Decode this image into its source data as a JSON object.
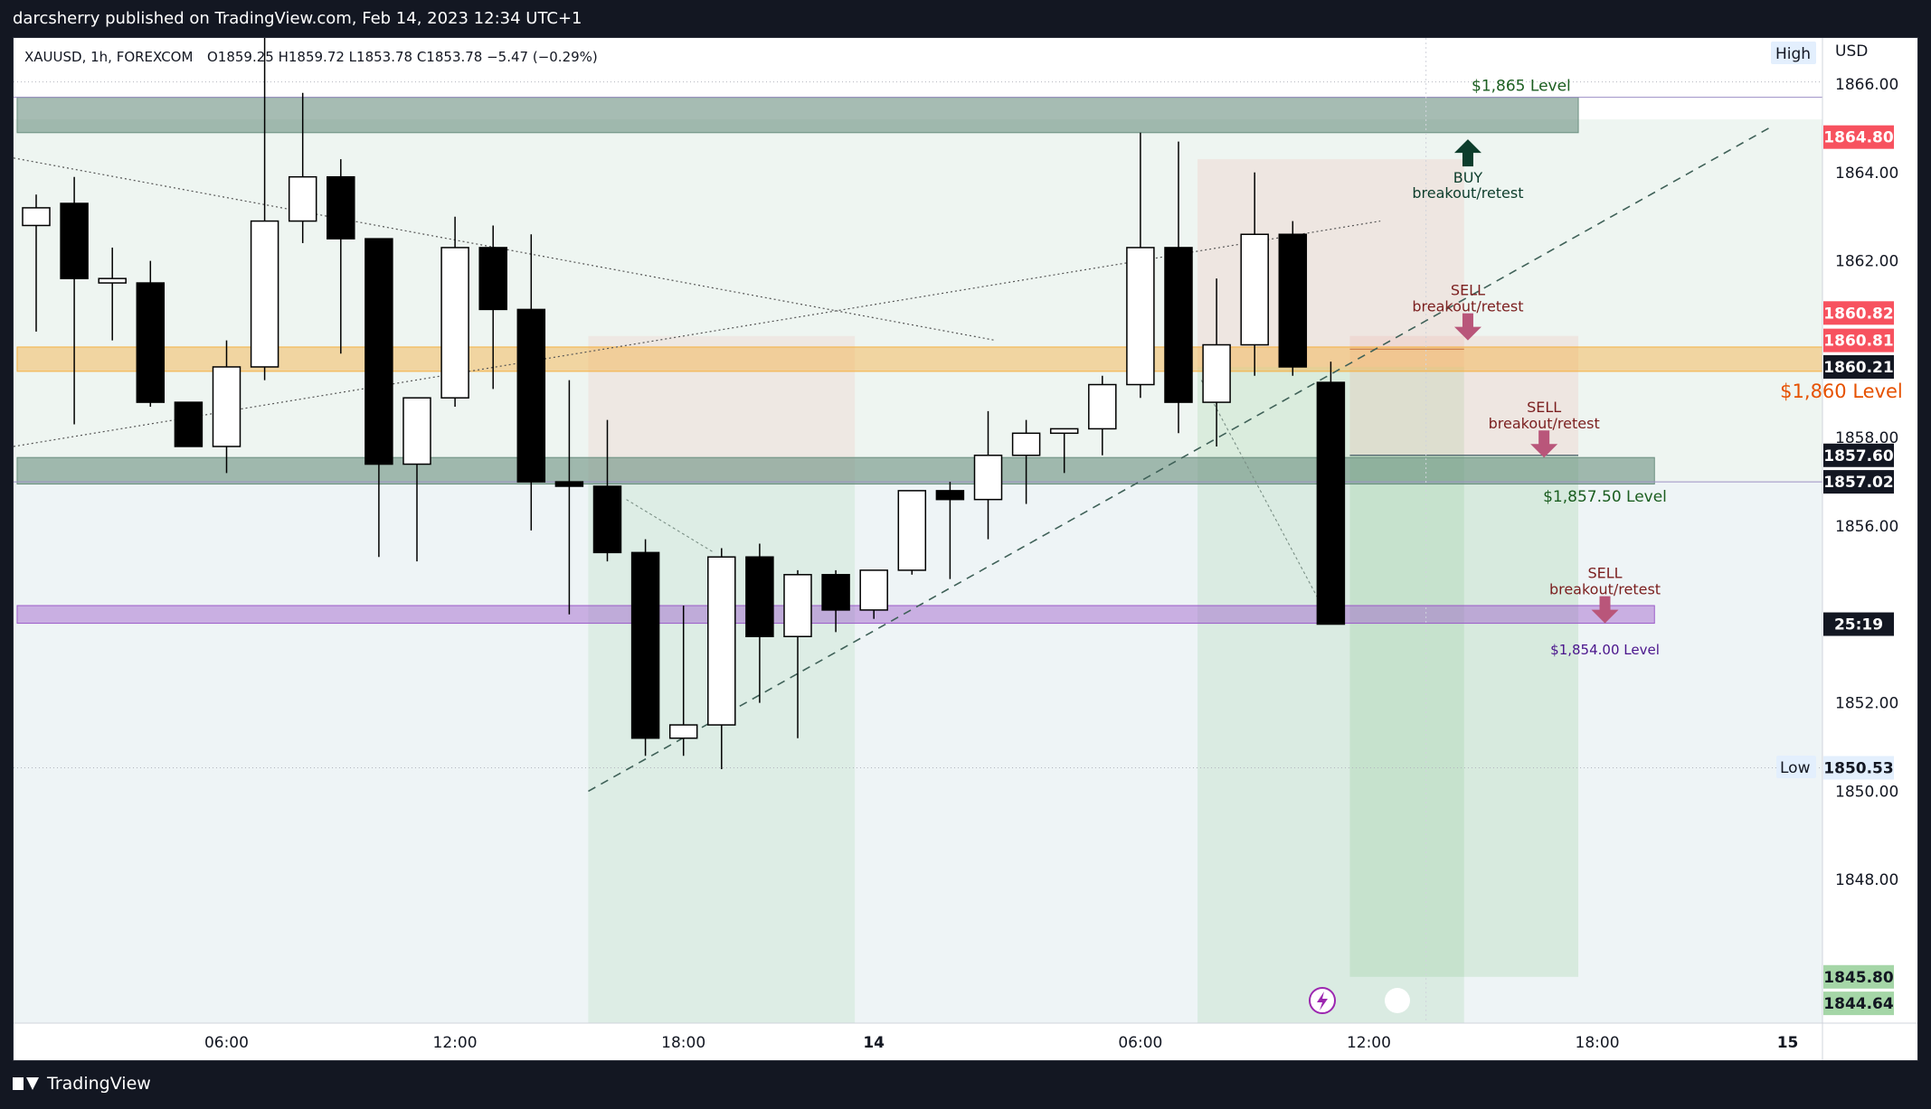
{
  "header": {
    "publish_line": "darcsherry published on TradingView.com, Feb 14, 2023 12:34 UTC+1"
  },
  "footer": {
    "brand": "TradingView"
  },
  "symbol_info": {
    "symbol": "XAUUSD, 1h, FOREXCOM",
    "ohlc_text": "O1859.25  H1859.72  L1853.78  C1853.78  −5.47 (−0.29%)"
  },
  "price_scale": {
    "currency": "USD",
    "high_label": "High",
    "low_label": "Low",
    "high_value": "1864.80",
    "low_value": "1850.53",
    "countdown": "25:19",
    "badges": [
      {
        "text": "1860.82",
        "price": 1860.82,
        "bg": "#f7525f",
        "fg": "#ffffff"
      },
      {
        "text": "1860.81",
        "price": 1860.2,
        "bg": "#f7525f",
        "fg": "#ffffff"
      },
      {
        "text": "1860.21",
        "price": 1859.6,
        "bg": "#131722",
        "fg": "#ffffff"
      },
      {
        "text": "1857.60",
        "price": 1857.6,
        "bg": "#131722",
        "fg": "#ffffff"
      },
      {
        "text": "1857.02",
        "price": 1857.0,
        "bg": "#131722",
        "fg": "#ffffff"
      },
      {
        "text": "1845.80",
        "price": 1845.8,
        "bg": "#a5d6a7",
        "fg": "#131722"
      },
      {
        "text": "1844.64",
        "price": 1845.2,
        "bg": "#a5d6a7",
        "fg": "#131722"
      }
    ]
  },
  "chart_data": {
    "type": "candlestick",
    "symbol": "XAUUSD",
    "interval": "1h",
    "exchange": "FOREXCOM",
    "y_ticks": [
      1866.0,
      1864.0,
      1862.0,
      1858.0,
      1856.0,
      1852.0,
      1850.0,
      1848.0
    ],
    "y_tick_labels": [
      "1866.00",
      "1864.00",
      "1862.00",
      "1858.00",
      "1856.00",
      "1852.00",
      "1850.00",
      "1848.00"
    ],
    "x_ticks": [
      {
        "label": "06:00",
        "index": 5,
        "bold": false
      },
      {
        "label": "12:00",
        "index": 11,
        "bold": false
      },
      {
        "label": "18:00",
        "index": 17,
        "bold": false
      },
      {
        "label": "14",
        "index": 22,
        "bold": true
      },
      {
        "label": "06:00",
        "index": 29,
        "bold": false
      },
      {
        "label": "12:00",
        "index": 35,
        "bold": false
      },
      {
        "label": "18:00",
        "index": 41,
        "bold": false
      },
      {
        "label": "15",
        "index": 46,
        "bold": true
      }
    ],
    "candles": [
      {
        "o": 1862.8,
        "h": 1863.5,
        "l": 1860.4,
        "c": 1863.2
      },
      {
        "o": 1863.3,
        "h": 1863.9,
        "l": 1858.3,
        "c": 1861.6
      },
      {
        "o": 1861.5,
        "h": 1862.3,
        "l": 1860.2,
        "c": 1861.6
      },
      {
        "o": 1861.5,
        "h": 1862.0,
        "l": 1858.7,
        "c": 1858.8
      },
      {
        "o": 1858.8,
        "h": 1858.8,
        "l": 1857.8,
        "c": 1857.8
      },
      {
        "o": 1857.8,
        "h": 1860.2,
        "l": 1857.2,
        "c": 1859.6
      },
      {
        "o": 1859.6,
        "h": 1867.2,
        "l": 1859.3,
        "c": 1862.9
      },
      {
        "o": 1862.9,
        "h": 1865.8,
        "l": 1862.4,
        "c": 1863.9
      },
      {
        "o": 1863.9,
        "h": 1864.3,
        "l": 1859.9,
        "c": 1862.5
      },
      {
        "o": 1862.5,
        "h": 1862.5,
        "l": 1855.3,
        "c": 1857.4
      },
      {
        "o": 1857.4,
        "h": 1858.9,
        "l": 1855.2,
        "c": 1858.9
      },
      {
        "o": 1858.9,
        "h": 1863.0,
        "l": 1858.7,
        "c": 1862.3
      },
      {
        "o": 1862.3,
        "h": 1862.8,
        "l": 1859.1,
        "c": 1860.9
      },
      {
        "o": 1860.9,
        "h": 1862.6,
        "l": 1855.9,
        "c": 1857.0
      },
      {
        "o": 1857.0,
        "h": 1859.3,
        "l": 1854.0,
        "c": 1856.9
      },
      {
        "o": 1856.9,
        "h": 1858.4,
        "l": 1855.2,
        "c": 1855.4
      },
      {
        "o": 1855.4,
        "h": 1855.7,
        "l": 1850.8,
        "c": 1851.2
      },
      {
        "o": 1851.2,
        "h": 1854.2,
        "l": 1850.8,
        "c": 1851.5
      },
      {
        "o": 1851.5,
        "h": 1855.5,
        "l": 1850.5,
        "c": 1855.3
      },
      {
        "o": 1855.3,
        "h": 1855.6,
        "l": 1852.0,
        "c": 1853.5
      },
      {
        "o": 1853.5,
        "h": 1855.0,
        "l": 1851.2,
        "c": 1854.9
      },
      {
        "o": 1854.9,
        "h": 1855.0,
        "l": 1853.6,
        "c": 1854.1
      },
      {
        "o": 1854.1,
        "h": 1855.0,
        "l": 1853.9,
        "c": 1855.0
      },
      {
        "o": 1855.0,
        "h": 1856.7,
        "l": 1854.9,
        "c": 1856.8
      },
      {
        "o": 1856.8,
        "h": 1857.0,
        "l": 1854.8,
        "c": 1856.6
      },
      {
        "o": 1856.6,
        "h": 1858.6,
        "l": 1855.7,
        "c": 1857.6
      },
      {
        "o": 1857.6,
        "h": 1858.4,
        "l": 1856.5,
        "c": 1858.1
      },
      {
        "o": 1858.1,
        "h": 1858.2,
        "l": 1857.2,
        "c": 1858.2
      },
      {
        "o": 1858.2,
        "h": 1859.4,
        "l": 1857.6,
        "c": 1859.2
      },
      {
        "o": 1859.2,
        "h": 1864.9,
        "l": 1858.9,
        "c": 1862.3
      },
      {
        "o": 1862.3,
        "h": 1864.7,
        "l": 1858.1,
        "c": 1858.8
      },
      {
        "o": 1858.8,
        "h": 1861.6,
        "l": 1857.8,
        "c": 1860.1
      },
      {
        "o": 1860.1,
        "h": 1864.0,
        "l": 1859.4,
        "c": 1862.6
      },
      {
        "o": 1862.6,
        "h": 1862.9,
        "l": 1859.4,
        "c": 1859.6
      },
      {
        "o": 1859.25,
        "h": 1859.72,
        "l": 1853.78,
        "c": 1853.78
      }
    ],
    "zones": [
      {
        "name": "zone-1865",
        "from": 1864.9,
        "to": 1865.7,
        "color": "#6b8f80",
        "opacity": 0.6,
        "x0": -0.5,
        "x1": 40.5
      },
      {
        "name": "zone-1860",
        "from": 1859.5,
        "to": 1860.05,
        "color": "#f5b041",
        "opacity": 0.45,
        "x0": -0.5,
        "x1": 47.5
      },
      {
        "name": "zone-1857",
        "from": 1856.95,
        "to": 1857.55,
        "color": "#6b8f80",
        "opacity": 0.6,
        "x0": -0.5,
        "x1": 42.5
      },
      {
        "name": "zone-1854",
        "from": 1853.8,
        "to": 1854.2,
        "color": "#9c5cc9",
        "opacity": 0.45,
        "x0": -0.5,
        "x1": 42.5
      }
    ],
    "annotations": [
      {
        "name": "label-1865-level",
        "text": "$1,865 Level",
        "color": "#1b5e20",
        "price": 1865.85,
        "index": 39.0,
        "size": 17
      },
      {
        "name": "label-1860-level",
        "text": "$1,860 Level",
        "color": "#e65100",
        "price": 1858.9,
        "index": 45.8,
        "size": 21,
        "anchor": "start"
      },
      {
        "name": "label-1857-level",
        "text": "$1,857.50 Level",
        "color": "#1b5e20",
        "price": 1856.55,
        "index": 41.2,
        "size": 17
      },
      {
        "name": "label-1854-level",
        "text": "$1,854.00 Level",
        "color": "#4a148c",
        "price": 1853.1,
        "index": 41.2,
        "size": 15
      }
    ],
    "signals": [
      {
        "name": "buy-signal",
        "line1": "BUY",
        "line2": "breakout/retest",
        "color": "#0d3d2c",
        "arrow": "up",
        "price": 1864.75,
        "index": 37.6
      },
      {
        "name": "sell-signal-1",
        "line1": "SELL",
        "line2": "breakout/retest",
        "color": "#7b1f1f",
        "arrow": "down",
        "price": 1860.2,
        "index": 37.6
      },
      {
        "name": "sell-signal-2",
        "line1": "SELL",
        "line2": "breakout/retest",
        "color": "#7b1f1f",
        "arrow": "down",
        "price": 1857.55,
        "index": 39.6
      },
      {
        "name": "sell-signal-3",
        "line1": "SELL",
        "line2": "breakout/retest",
        "color": "#7b1f1f",
        "arrow": "down",
        "price": 1853.8,
        "index": 41.2
      }
    ]
  },
  "colors": {
    "bull_body": "#ffffff",
    "bear_body": "#000000",
    "wick": "#000000",
    "trend_dashed": "#3f6158",
    "long_tp": "#4caf50",
    "long_sl": "#f28b82"
  },
  "icons": {
    "alert": "lightning-icon",
    "marker": "circle-icon"
  }
}
